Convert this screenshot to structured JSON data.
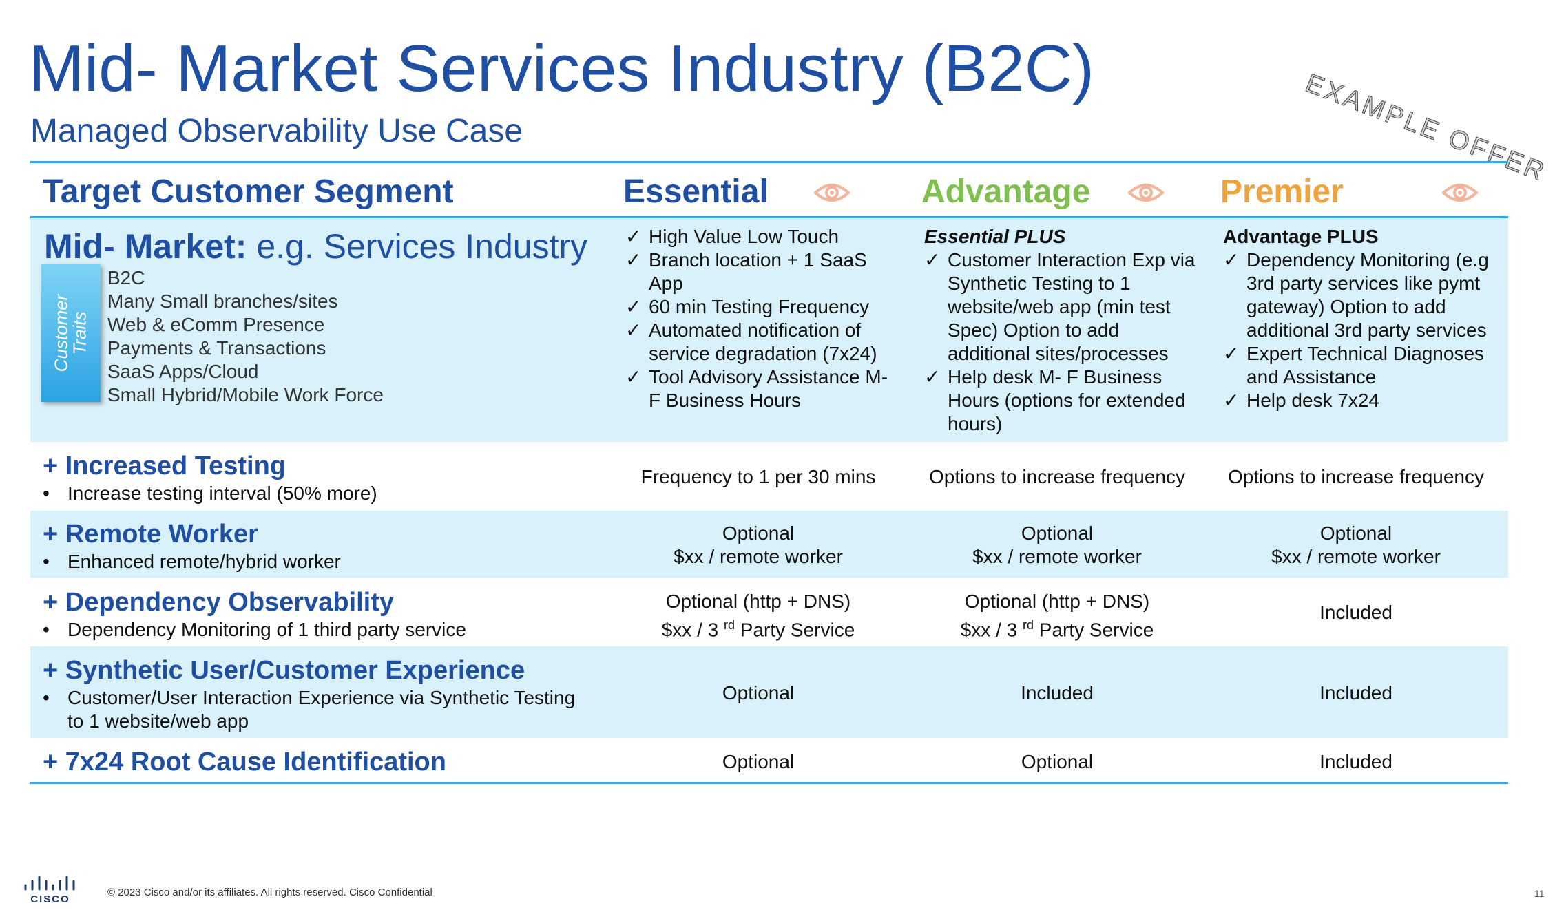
{
  "title": "Mid- Market Services Industry (B2C)",
  "subtitle": "Managed Observability Use Case",
  "stamp": "EXAMPLE OFFER",
  "colors": {
    "blue": "#1f4fa3",
    "essential": "#1f4fa3",
    "advantage": "#7fbf4d",
    "premier": "#f0a23c",
    "band": "#d8f1fa",
    "rule": "#3aa7e0"
  },
  "header": {
    "segment": "Target Customer Segment",
    "essential": "Essential",
    "advantage": "Advantage",
    "premier": "Premier",
    "icon": "eye-icon"
  },
  "segment": {
    "bold": "Mid- Market:",
    "normal": " e.g. Services Industry",
    "tab_line1": "Customer",
    "tab_line2": "Traits",
    "traits": [
      "B2C",
      "Many Small branches/sites",
      "Web & eComm  Presence",
      "Payments & Transactions",
      "SaaS Apps/Cloud",
      "Small Hybrid/Mobile Work Force"
    ]
  },
  "check": "✓",
  "essential_features": [
    "High Value Low Touch",
    "Branch location + 1 SaaS App",
    "60 min Testing Frequency",
    "Automated notification of service degradation (7x24)",
    "Tool Advisory Assistance M- F Business Hours"
  ],
  "advantage_head": "Essential PLUS",
  "advantage_features": [
    "Customer Interaction Exp via Synthetic Testing to 1 website/web app (min test Spec) Option to add additional sites/processes",
    "Help desk M- F Business Hours (options for extended hours)"
  ],
  "premier_head": "Advantage PLUS",
  "premier_features": [
    "Dependency Monitoring (e.g 3rd party services like pymt  gateway) Option to add additional 3rd party services",
    "Expert Technical Diagnoses and Assistance",
    "Help desk 7x24"
  ],
  "rows": [
    {
      "title": "+ Increased Testing",
      "sub": "Increase testing interval (50% more)",
      "essential": "Frequency to 1 per 30 mins",
      "advantage": "Options to increase frequency",
      "premier": "Options to increase frequency"
    },
    {
      "title": "+ Remote Worker",
      "sub": "Enhanced remote/hybrid worker",
      "essential_l1": "Optional",
      "essential_l2": "$xx / remote worker",
      "advantage_l1": "Optional",
      "advantage_l2": "$xx / remote worker",
      "premier_l1": "Optional",
      "premier_l2": "$xx / remote worker"
    },
    {
      "title": "+ Dependency Observability",
      "sub": "Dependency Monitoring of 1 third party service",
      "essential_l1": "Optional (http + DNS)",
      "essential_l2a": "$xx / 3 ",
      "essential_sup": "rd",
      "essential_l2b": " Party Service",
      "advantage_l1": "Optional (http + DNS)",
      "advantage_l2a": "$xx / 3 ",
      "advantage_sup": "rd",
      "advantage_l2b": " Party Service",
      "premier": "Included"
    },
    {
      "title": "+ Synthetic User/Customer Experience",
      "sub": "Customer/User Interaction Experience via Synthetic Testing to 1 website/web app",
      "essential": "Optional",
      "advantage": "Included",
      "premier": "Included"
    },
    {
      "title": "+ 7x24 Root Cause Identification",
      "essential": "Optional",
      "advantage": "Optional",
      "premier": "Included"
    }
  ],
  "bullet": "•",
  "footer": "© 2023 Cisco and/or its affiliates. All rights reserved. Cisco Confidential",
  "page_number": "11",
  "logo_text": "CISCO"
}
